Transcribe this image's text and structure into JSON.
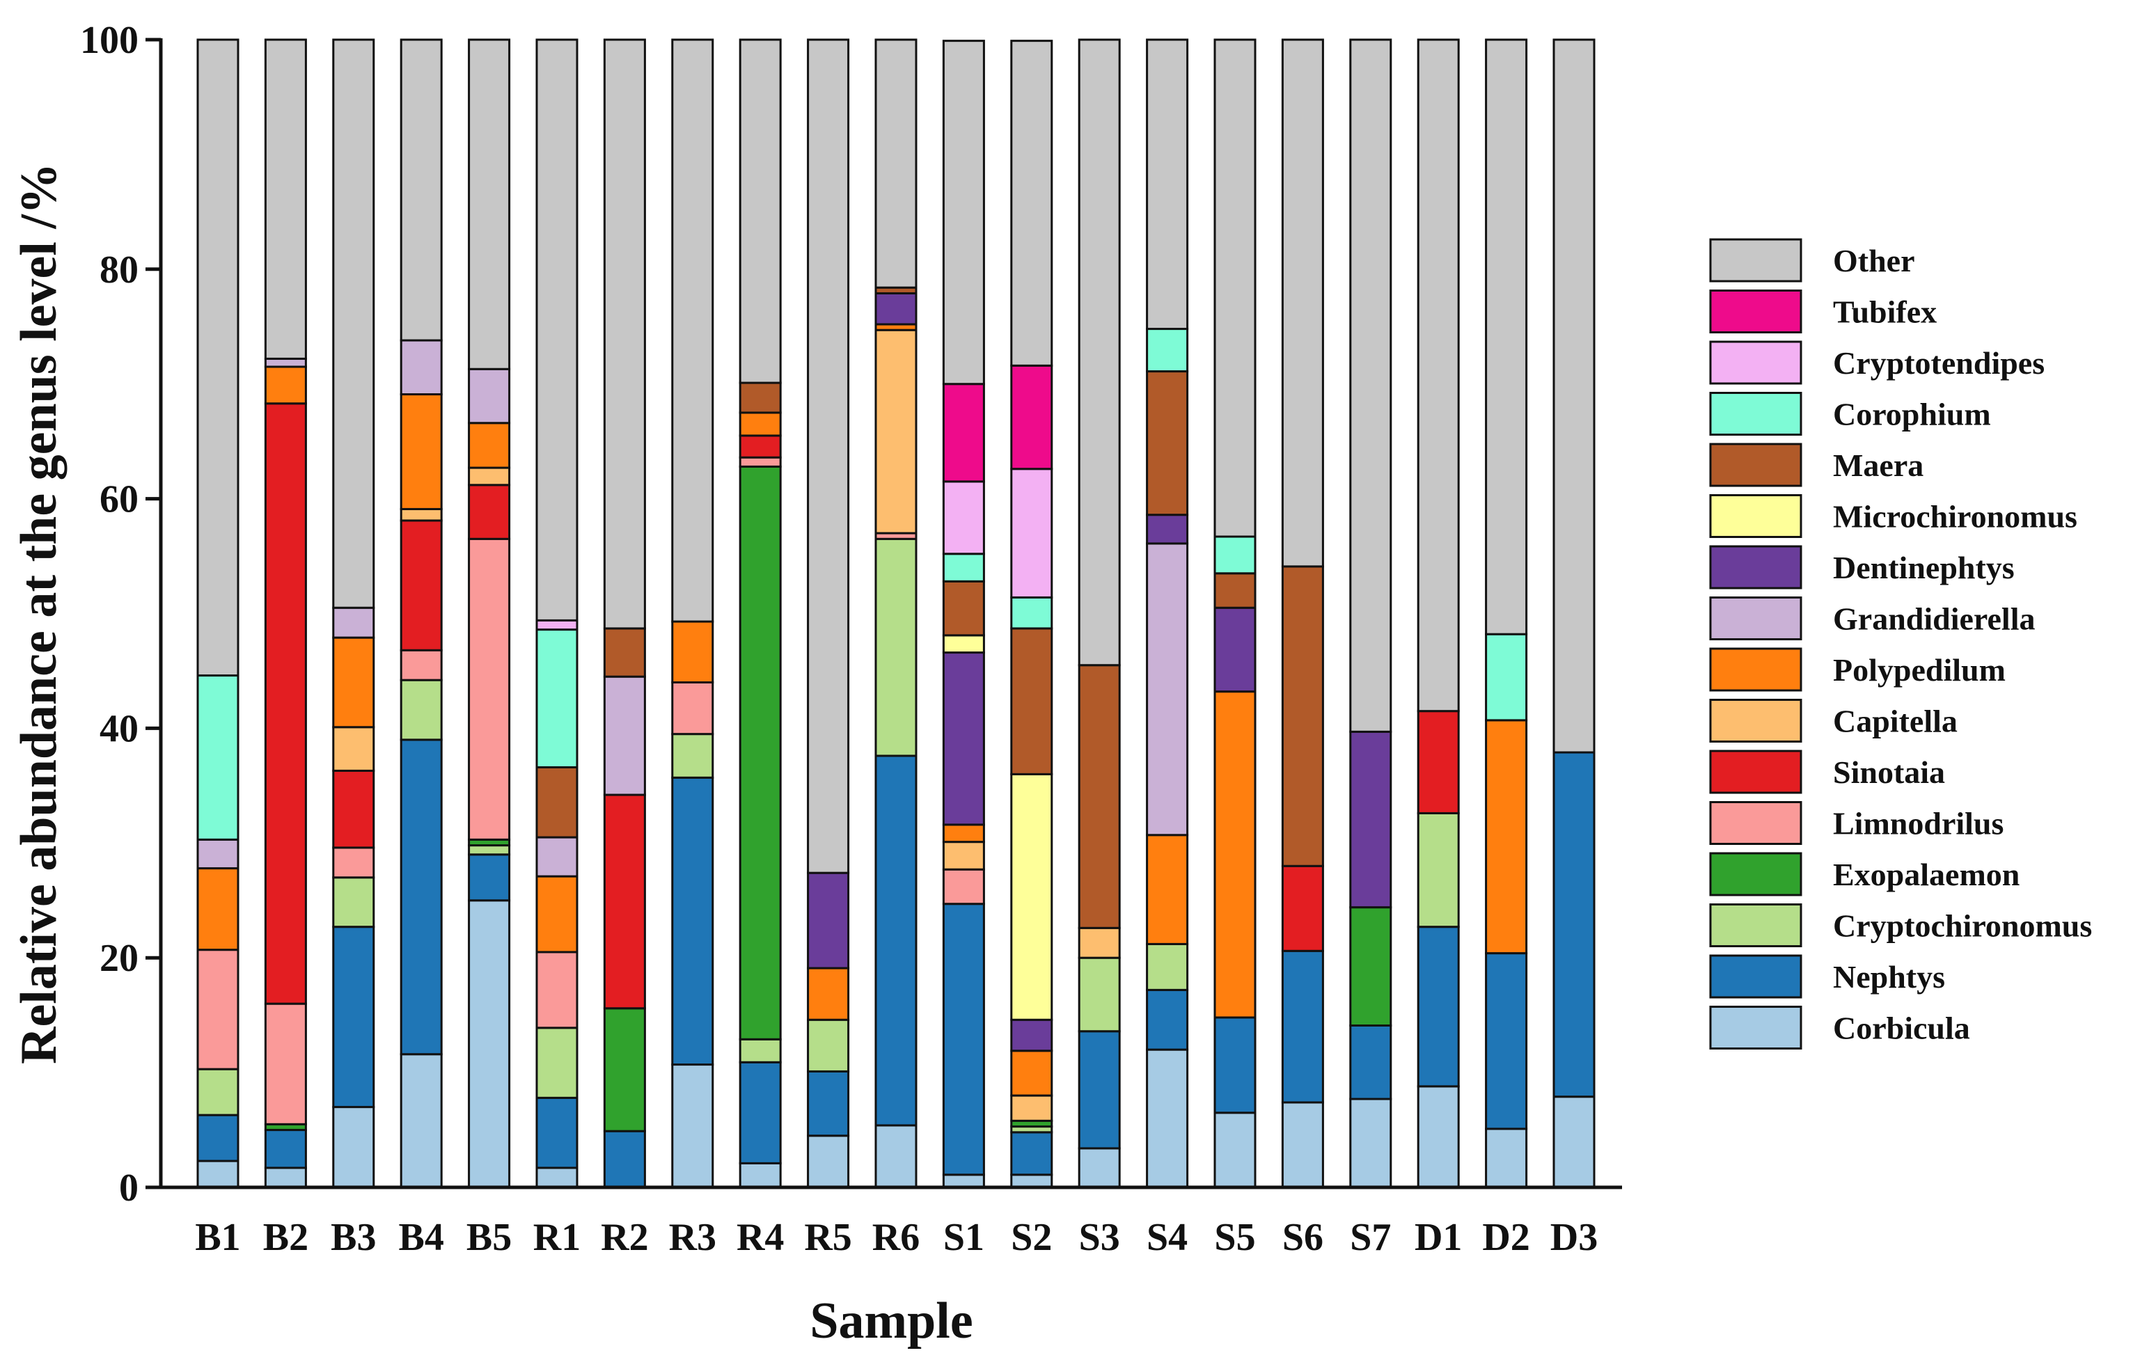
{
  "chart_data": {
    "type": "bar",
    "stacked": true,
    "title": "",
    "xlabel": "Sample",
    "ylabel": "Relative abundance at the genus level /%",
    "ylim": [
      0,
      100
    ],
    "yticks": [
      0,
      20,
      40,
      60,
      80,
      100
    ],
    "legend_position": "right",
    "categories": [
      "B1",
      "B2",
      "B3",
      "B4",
      "B5",
      "R1",
      "R2",
      "R3",
      "R4",
      "R5",
      "R6",
      "S1",
      "S2",
      "S3",
      "S4",
      "S5",
      "S6",
      "S7",
      "D1",
      "D2",
      "D3"
    ],
    "series": [
      {
        "name": "Corbicula",
        "color": "#a6cbe4",
        "values": [
          2.3,
          1.7,
          7,
          11.6,
          25,
          1.7,
          0,
          10.7,
          2.1,
          4.5,
          5.4,
          1.1,
          1.1,
          3.4,
          12,
          6.5,
          7.4,
          7.7,
          8.8,
          5.1,
          7.9
        ]
      },
      {
        "name": "Nephtys",
        "color": "#1f76b6",
        "values": [
          4,
          3.3,
          15.7,
          27.4,
          4,
          6.1,
          4.9,
          25,
          8.8,
          5.6,
          32.2,
          23.6,
          3.7,
          10.2,
          5.2,
          8.3,
          13.2,
          6.4,
          13.9,
          15.3,
          30
        ]
      },
      {
        "name": "Cryptochironomus",
        "color": "#b5de8a",
        "values": [
          4,
          0,
          4.3,
          5.2,
          0.8,
          6.1,
          0,
          3.8,
          2,
          4.5,
          18.9,
          0,
          0.5,
          6.4,
          4,
          0,
          0,
          0,
          9.9,
          0,
          0
        ]
      },
      {
        "name": "Exopalaemon",
        "color": "#30a22d",
        "values": [
          0,
          0.5,
          0,
          0,
          0.5,
          0,
          10.7,
          0,
          49.9,
          0,
          0,
          0,
          0.5,
          0,
          0,
          0,
          0,
          10.3,
          0,
          0,
          0
        ]
      },
      {
        "name": "Limnodrilus",
        "color": "#fa9a99",
        "values": [
          10.4,
          10.5,
          2.6,
          2.6,
          26.2,
          6.6,
          0,
          4.5,
          0.8,
          0,
          0.5,
          3,
          0,
          0,
          0,
          0,
          0,
          0,
          0,
          0,
          0
        ]
      },
      {
        "name": "Sinotaia",
        "color": "#e31e22",
        "values": [
          0,
          52.3,
          6.7,
          11.3,
          4.7,
          0,
          18.6,
          0,
          1.9,
          0,
          0,
          0,
          0,
          0,
          0,
          0,
          7.4,
          0,
          8.9,
          0,
          0
        ]
      },
      {
        "name": "Capitella",
        "color": "#fdbe6f",
        "values": [
          0,
          0,
          3.8,
          1,
          1.5,
          0,
          0,
          0,
          0,
          0,
          17.7,
          2.4,
          2.2,
          2.6,
          0,
          0,
          0,
          0,
          0,
          0,
          0
        ]
      },
      {
        "name": "Polypedilum",
        "color": "#ff7f0f",
        "values": [
          7.1,
          3.2,
          7.8,
          10,
          3.9,
          6.6,
          0,
          5.3,
          2,
          4.5,
          0.5,
          1.5,
          3.9,
          0,
          9.5,
          28.4,
          0,
          0,
          0,
          20.3,
          0
        ]
      },
      {
        "name": "Grandidierella",
        "color": "#cab1d6",
        "values": [
          2.5,
          0.7,
          2.6,
          4.7,
          4.7,
          3.4,
          10.3,
          0,
          0,
          0,
          0,
          0,
          0,
          0,
          25.4,
          0,
          0,
          0,
          0,
          0,
          0
        ]
      },
      {
        "name": "Dentinephtys",
        "color": "#6a3d9a",
        "values": [
          0,
          0,
          0,
          0,
          0,
          0,
          0,
          0,
          0,
          8.3,
          2.7,
          15,
          2.7,
          0,
          2.5,
          7.3,
          0,
          15.3,
          0,
          0,
          0
        ]
      },
      {
        "name": "Microchironomus",
        "color": "#feff99",
        "values": [
          0,
          0,
          0,
          0,
          0,
          0,
          0,
          0,
          0,
          0,
          0,
          1.5,
          21.4,
          0,
          0,
          0,
          0,
          0,
          0,
          0,
          0
        ]
      },
      {
        "name": "Maera",
        "color": "#b15a29",
        "values": [
          0,
          0,
          0,
          0,
          0,
          6.1,
          4.2,
          0,
          2.6,
          0,
          0.5,
          4.7,
          12.7,
          22.9,
          12.5,
          3,
          26.1,
          0,
          0,
          0,
          0
        ]
      },
      {
        "name": "Corophium",
        "color": "#7efbd6",
        "values": [
          14.3,
          0,
          0,
          0,
          0,
          12,
          0,
          0,
          0,
          0,
          0,
          2.4,
          2.7,
          0,
          3.7,
          3.2,
          0,
          0,
          0,
          7.5,
          0
        ]
      },
      {
        "name": "Cryptotendipes",
        "color": "#f3b1f3",
        "values": [
          0,
          0,
          0,
          0,
          0,
          0.8,
          0,
          0,
          0,
          0,
          0,
          6.3,
          11.2,
          0,
          0,
          0,
          0,
          0,
          0,
          0,
          0
        ]
      },
      {
        "name": "Tubifex",
        "color": "#ee0b8b",
        "values": [
          0,
          0,
          0,
          0,
          0,
          0,
          0,
          0,
          0,
          0,
          0,
          8.5,
          9,
          0,
          0,
          0,
          0,
          0,
          0,
          0,
          0
        ]
      },
      {
        "name": "Other",
        "color": "#c7c7c7",
        "values": [
          55.4,
          27.8,
          49.5,
          26.2,
          28.7,
          50.6,
          51.3,
          50.7,
          29.9,
          72.6,
          21.6,
          29.9,
          28.3,
          54.5,
          25.2,
          43.3,
          45.9,
          60.3,
          58.5,
          51.8,
          62.1
        ]
      }
    ]
  }
}
